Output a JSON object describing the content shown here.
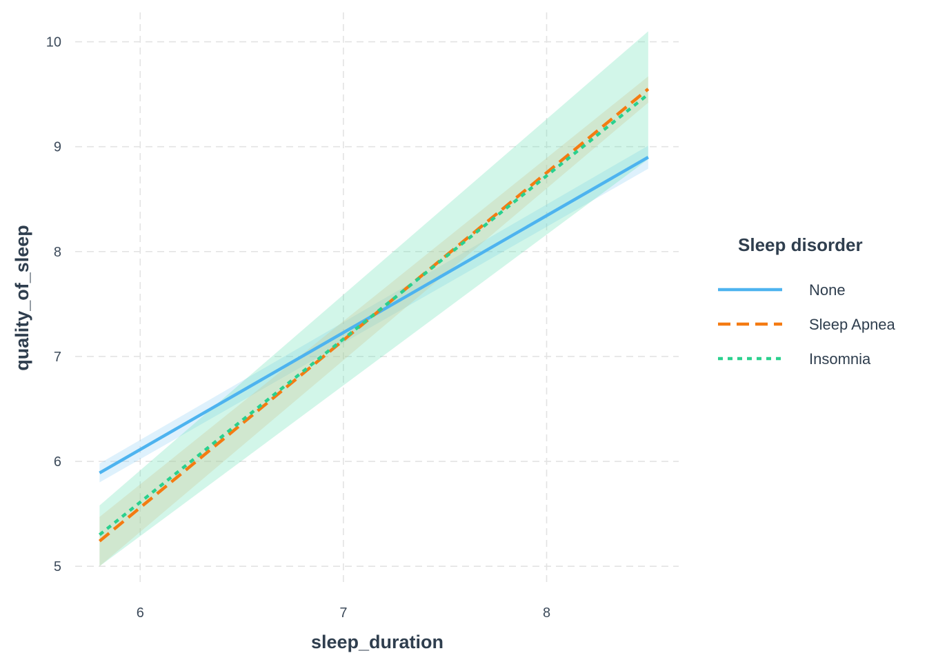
{
  "chart_data": {
    "type": "line",
    "xlabel": "sleep_duration",
    "ylabel": "quality_of_sleep",
    "xlim": [
      5.68,
      8.65
    ],
    "ylim": [
      4.85,
      10.28
    ],
    "x_ticks": [
      6,
      7,
      8
    ],
    "y_ticks": [
      5,
      6,
      7,
      8,
      9,
      10
    ],
    "grid": true,
    "legend": {
      "title": "Sleep disorder",
      "position": "right"
    },
    "x_range": [
      5.8,
      8.5
    ],
    "series": [
      {
        "name": "None",
        "color": "#4db3ef",
        "dash": "solid",
        "x": [
          5.8,
          8.5
        ],
        "y": [
          5.89,
          8.9
        ],
        "ci_lower": [
          5.8,
          8.79
        ],
        "ci_upper": [
          5.98,
          9.01
        ],
        "ci_color": "#88ccf5"
      },
      {
        "name": "Sleep Apnea",
        "color": "#f47b12",
        "dash": "dashed",
        "x": [
          5.8,
          8.5
        ],
        "y": [
          5.24,
          9.55
        ],
        "ci_lower": [
          5.0,
          9.42
        ],
        "ci_upper": [
          5.47,
          9.67
        ],
        "ci_color": "#f9b67f"
      },
      {
        "name": "Insomnia",
        "color": "#2ad08e",
        "dash": "dotted",
        "x": [
          5.8,
          8.5
        ],
        "y": [
          5.3,
          9.5
        ],
        "ci_lower": [
          5.0,
          8.88
        ],
        "ci_upper": [
          5.58,
          10.1
        ],
        "ci_color": "#5ee0b0"
      }
    ]
  }
}
